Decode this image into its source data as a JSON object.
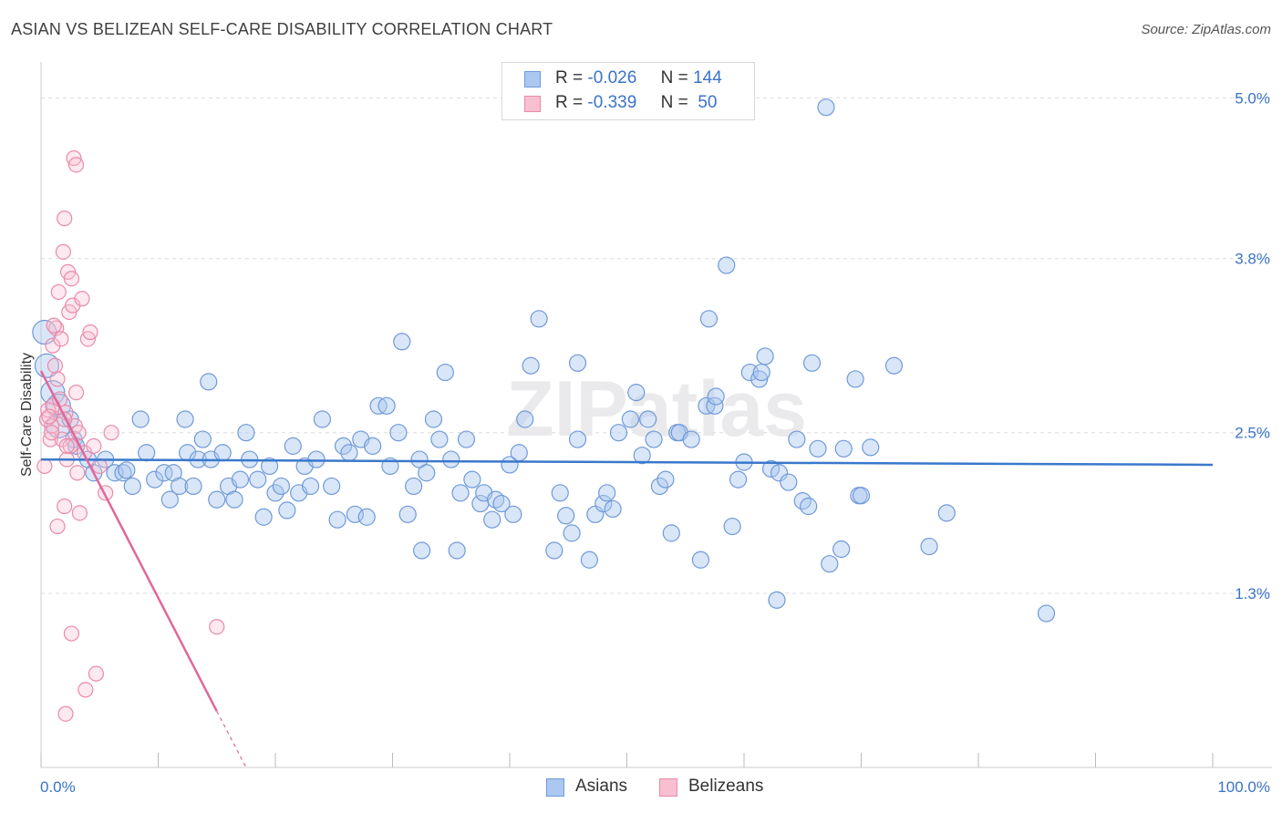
{
  "title": "ASIAN VS BELIZEAN SELF-CARE DISABILITY CORRELATION CHART",
  "source": "Source: ZipAtlas.com",
  "watermark": "ZIPatlas",
  "legend_stats": [
    {
      "r_label": "R =",
      "r_value": "-0.026",
      "n_label": "N =",
      "n_value": "144",
      "color": "#aac8f0",
      "border": "#6f9ad8"
    },
    {
      "r_label": "R =",
      "r_value": "-0.339",
      "n_label": "N =",
      "n_value": "50",
      "color": "#f8bfd0",
      "border": "#e98aa9"
    }
  ],
  "bottom_legend": [
    {
      "label": "Asians",
      "color": "#aac8f0",
      "border": "#6f9ad8"
    },
    {
      "label": "Belizeans",
      "color": "#f8bfd0",
      "border": "#e98aa9"
    }
  ],
  "chart_data": {
    "type": "scatter",
    "title": "ASIAN VS BELIZEAN SELF-CARE DISABILITY CORRELATION CHART",
    "xlabel": "",
    "ylabel": "Self-Care Disability",
    "xlim": [
      0,
      100
    ],
    "ylim": [
      0.0,
      5.2
    ],
    "x_tick_labels": [
      "0.0%",
      "100.0%"
    ],
    "y_ticks": [
      1.3,
      2.5,
      3.8,
      5.0
    ],
    "y_tick_labels": [
      "1.3%",
      "2.5%",
      "3.8%",
      "5.0%"
    ],
    "grid": true,
    "colors": {
      "asians": "#3a78cc",
      "belizeans": "#e0679a"
    },
    "series": [
      {
        "name": "Asians",
        "trend": {
          "x": [
            0,
            100
          ],
          "y": [
            2.3,
            2.26
          ]
        },
        "points": [
          [
            0.3,
            3.25
          ],
          [
            0.5,
            3.0
          ],
          [
            1.0,
            2.8
          ],
          [
            1.5,
            2.7
          ],
          [
            1.5,
            2.55
          ],
          [
            2.5,
            2.6
          ],
          [
            2.8,
            2.45
          ],
          [
            3.0,
            2.4
          ],
          [
            4.0,
            2.3
          ],
          [
            4.5,
            2.2
          ],
          [
            5.5,
            2.3
          ],
          [
            6.3,
            2.2
          ],
          [
            7.0,
            2.2
          ],
          [
            7.3,
            2.22
          ],
          [
            7.8,
            2.1
          ],
          [
            8.5,
            2.6
          ],
          [
            9.0,
            2.35
          ],
          [
            9.7,
            2.15
          ],
          [
            10.5,
            2.2
          ],
          [
            11.0,
            2.0
          ],
          [
            11.3,
            2.2
          ],
          [
            11.8,
            2.1
          ],
          [
            12.3,
            2.6
          ],
          [
            12.5,
            2.35
          ],
          [
            13.0,
            2.1
          ],
          [
            13.4,
            2.3
          ],
          [
            13.8,
            2.45
          ],
          [
            14.3,
            2.88
          ],
          [
            14.5,
            2.3
          ],
          [
            15.0,
            2.0
          ],
          [
            15.5,
            2.35
          ],
          [
            16.0,
            2.1
          ],
          [
            16.5,
            2.0
          ],
          [
            17.0,
            2.15
          ],
          [
            17.5,
            2.5
          ],
          [
            17.8,
            2.3
          ],
          [
            18.5,
            2.15
          ],
          [
            19.0,
            1.87
          ],
          [
            19.5,
            2.25
          ],
          [
            20.0,
            2.05
          ],
          [
            20.5,
            2.1
          ],
          [
            21.0,
            1.92
          ],
          [
            21.5,
            2.4
          ],
          [
            22.0,
            2.05
          ],
          [
            22.5,
            2.25
          ],
          [
            23.0,
            2.1
          ],
          [
            23.5,
            2.3
          ],
          [
            24.0,
            2.6
          ],
          [
            24.8,
            2.1
          ],
          [
            25.3,
            1.85
          ],
          [
            25.8,
            2.4
          ],
          [
            26.3,
            2.35
          ],
          [
            26.8,
            1.89
          ],
          [
            27.3,
            2.45
          ],
          [
            27.8,
            1.87
          ],
          [
            28.3,
            2.4
          ],
          [
            28.8,
            2.7
          ],
          [
            29.5,
            2.7
          ],
          [
            29.8,
            2.25
          ],
          [
            30.5,
            2.5
          ],
          [
            30.8,
            3.18
          ],
          [
            31.3,
            1.89
          ],
          [
            31.8,
            2.1
          ],
          [
            32.3,
            2.3
          ],
          [
            32.5,
            1.62
          ],
          [
            32.9,
            2.2
          ],
          [
            33.5,
            2.6
          ],
          [
            34.0,
            2.45
          ],
          [
            34.5,
            2.95
          ],
          [
            35.0,
            2.3
          ],
          [
            35.5,
            1.62
          ],
          [
            35.8,
            2.05
          ],
          [
            36.3,
            2.45
          ],
          [
            36.8,
            2.15
          ],
          [
            37.5,
            1.97
          ],
          [
            37.8,
            2.05
          ],
          [
            38.5,
            1.85
          ],
          [
            38.8,
            2.0
          ],
          [
            39.3,
            1.97
          ],
          [
            40.0,
            2.26
          ],
          [
            40.3,
            1.89
          ],
          [
            40.8,
            2.35
          ],
          [
            41.3,
            2.6
          ],
          [
            41.8,
            3.0
          ],
          [
            42.5,
            3.35
          ],
          [
            43.8,
            1.62
          ],
          [
            44.3,
            2.05
          ],
          [
            44.8,
            1.88
          ],
          [
            45.3,
            1.75
          ],
          [
            45.8,
            2.45
          ],
          [
            45.8,
            3.02
          ],
          [
            46.8,
            1.55
          ],
          [
            47.3,
            1.89
          ],
          [
            48.0,
            1.97
          ],
          [
            48.3,
            2.05
          ],
          [
            48.8,
            1.93
          ],
          [
            49.3,
            2.5
          ],
          [
            50.3,
            2.6
          ],
          [
            50.8,
            2.8
          ],
          [
            51.3,
            2.33
          ],
          [
            51.8,
            2.6
          ],
          [
            52.3,
            2.45
          ],
          [
            52.8,
            2.1
          ],
          [
            53.3,
            2.15
          ],
          [
            53.8,
            1.75
          ],
          [
            54.3,
            2.5
          ],
          [
            54.5,
            2.5
          ],
          [
            55.5,
            2.45
          ],
          [
            56.3,
            1.55
          ],
          [
            56.8,
            2.7
          ],
          [
            57.0,
            3.35
          ],
          [
            57.5,
            2.7
          ],
          [
            57.6,
            2.77
          ],
          [
            58.5,
            3.75
          ],
          [
            59.0,
            1.8
          ],
          [
            59.5,
            2.15
          ],
          [
            60.0,
            2.28
          ],
          [
            60.5,
            2.95
          ],
          [
            61.3,
            2.9
          ],
          [
            61.5,
            2.95
          ],
          [
            61.8,
            3.07
          ],
          [
            62.3,
            2.23
          ],
          [
            62.8,
            1.25
          ],
          [
            63.0,
            2.2
          ],
          [
            63.8,
            2.13
          ],
          [
            64.5,
            2.45
          ],
          [
            65.0,
            1.99
          ],
          [
            65.5,
            1.95
          ],
          [
            65.8,
            3.02
          ],
          [
            66.3,
            2.38
          ],
          [
            67.0,
            4.93
          ],
          [
            67.3,
            1.52
          ],
          [
            68.3,
            1.63
          ],
          [
            68.5,
            2.38
          ],
          [
            69.5,
            2.9
          ],
          [
            69.8,
            2.03
          ],
          [
            70.0,
            2.03
          ],
          [
            70.8,
            2.39
          ],
          [
            72.8,
            3.0
          ],
          [
            75.8,
            1.65
          ],
          [
            77.3,
            1.9
          ],
          [
            85.8,
            1.15
          ]
        ]
      },
      {
        "name": "Belizeans",
        "trend": {
          "x": [
            0,
            15
          ],
          "y": [
            2.96,
            0.42
          ],
          "dash_x": [
            15,
            17.5
          ],
          "dash_y": [
            0.42,
            0.0
          ]
        },
        "points": [
          [
            0.3,
            2.25
          ],
          [
            0.5,
            2.6
          ],
          [
            0.6,
            2.67
          ],
          [
            0.8,
            2.45
          ],
          [
            0.9,
            2.55
          ],
          [
            1.0,
            2.7
          ],
          [
            1.0,
            3.15
          ],
          [
            1.2,
            3.0
          ],
          [
            1.3,
            3.28
          ],
          [
            1.4,
            2.9
          ],
          [
            1.5,
            3.55
          ],
          [
            1.6,
            2.75
          ],
          [
            1.7,
            3.2
          ],
          [
            1.8,
            2.45
          ],
          [
            1.9,
            3.85
          ],
          [
            2.0,
            4.1
          ],
          [
            2.0,
            1.95
          ],
          [
            2.1,
            2.65
          ],
          [
            2.2,
            2.3
          ],
          [
            2.3,
            3.7
          ],
          [
            2.4,
            3.4
          ],
          [
            2.5,
            2.4
          ],
          [
            2.6,
            3.65
          ],
          [
            2.7,
            3.45
          ],
          [
            2.8,
            4.55
          ],
          [
            2.9,
            2.55
          ],
          [
            3.0,
            4.5
          ],
          [
            3.1,
            2.2
          ],
          [
            3.2,
            2.5
          ],
          [
            3.3,
            1.9
          ],
          [
            3.5,
            3.5
          ],
          [
            3.7,
            2.35
          ],
          [
            4.0,
            3.2
          ],
          [
            4.2,
            3.25
          ],
          [
            2.1,
            0.4
          ],
          [
            2.6,
            1.0
          ],
          [
            3.8,
            0.58
          ],
          [
            4.7,
            0.7
          ],
          [
            5.0,
            2.25
          ],
          [
            5.5,
            2.05
          ],
          [
            6.0,
            2.5
          ],
          [
            15.0,
            1.05
          ],
          [
            1.4,
            1.8
          ],
          [
            2.2,
            2.4
          ],
          [
            0.7,
            2.62
          ],
          [
            0.9,
            2.5
          ],
          [
            1.1,
            3.3
          ],
          [
            3.0,
            2.8
          ],
          [
            4.5,
            2.4
          ],
          [
            2.0,
            2.6
          ]
        ]
      }
    ]
  }
}
